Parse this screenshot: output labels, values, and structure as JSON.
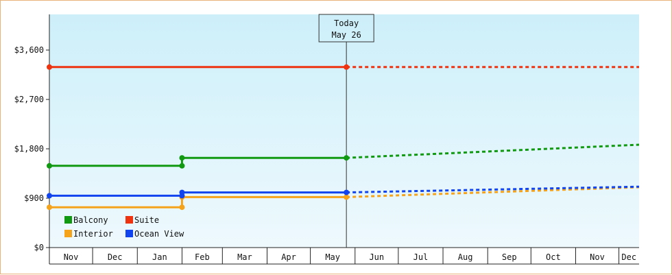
{
  "chart_data": {
    "type": "line",
    "title": "",
    "xlabel": "",
    "ylabel": "",
    "ylim": [
      0,
      4250
    ],
    "yticks": [
      0,
      900,
      1800,
      2700,
      3600
    ],
    "ytick_labels": [
      "$0",
      "$900",
      "$1,800",
      "$2,700",
      "$3,600"
    ],
    "x_months": [
      "Nov",
      "Dec",
      "Jan",
      "Feb",
      "Mar",
      "Apr",
      "May",
      "Jun",
      "Jul",
      "Aug",
      "Sep",
      "Oct",
      "Nov",
      "Dec"
    ],
    "x_range": [
      "2024-11-01",
      "2025-12-15"
    ],
    "today": {
      "line1": "Today",
      "line2": "May 26",
      "date": "2025-05-26"
    },
    "legend": {
      "placement": "bottom-left"
    },
    "colors": {
      "plot_top": "#cdeffa",
      "plot_bottom": "#eef9fd",
      "frame_border": "#e8b27a",
      "axis": "#222222",
      "today_line": "#333333"
    },
    "series": [
      {
        "name": "Balcony",
        "color": "#119911",
        "history": [
          [
            "2024-11-01",
            1490
          ],
          [
            "2025-02-01",
            1490
          ],
          [
            "2025-02-01",
            1635
          ],
          [
            "2025-05-26",
            1635
          ]
        ],
        "markers": [
          [
            "2024-11-01",
            1490
          ],
          [
            "2025-02-01",
            1490
          ],
          [
            "2025-02-01",
            1635
          ],
          [
            "2025-05-26",
            1635
          ]
        ],
        "forecast": [
          [
            "2025-05-26",
            1635
          ],
          [
            "2025-12-15",
            1875
          ]
        ]
      },
      {
        "name": "Suite",
        "color": "#ee3311",
        "history": [
          [
            "2024-11-01",
            3290
          ],
          [
            "2025-05-26",
            3290
          ]
        ],
        "markers": [
          [
            "2024-11-01",
            3290
          ],
          [
            "2025-05-26",
            3290
          ]
        ],
        "forecast": [
          [
            "2025-05-26",
            3290
          ],
          [
            "2025-12-15",
            3290
          ]
        ]
      },
      {
        "name": "Interior",
        "color": "#f5a31a",
        "history": [
          [
            "2024-11-01",
            735
          ],
          [
            "2025-02-01",
            735
          ],
          [
            "2025-02-01",
            920
          ],
          [
            "2025-05-26",
            920
          ]
        ],
        "markers": [
          [
            "2024-11-01",
            735
          ],
          [
            "2025-02-01",
            735
          ],
          [
            "2025-02-01",
            920
          ],
          [
            "2025-05-26",
            920
          ]
        ],
        "forecast": [
          [
            "2025-05-26",
            920
          ],
          [
            "2025-12-15",
            1100
          ]
        ]
      },
      {
        "name": "Ocean View",
        "color": "#1144ee",
        "history": [
          [
            "2024-11-01",
            945
          ],
          [
            "2025-02-01",
            945
          ],
          [
            "2025-02-01",
            1005
          ],
          [
            "2025-05-26",
            1005
          ]
        ],
        "markers": [
          [
            "2024-11-01",
            945
          ],
          [
            "2025-02-01",
            945
          ],
          [
            "2025-02-01",
            1005
          ],
          [
            "2025-05-26",
            1005
          ]
        ],
        "forecast": [
          [
            "2025-05-26",
            1005
          ],
          [
            "2025-12-15",
            1110
          ]
        ]
      }
    ]
  }
}
